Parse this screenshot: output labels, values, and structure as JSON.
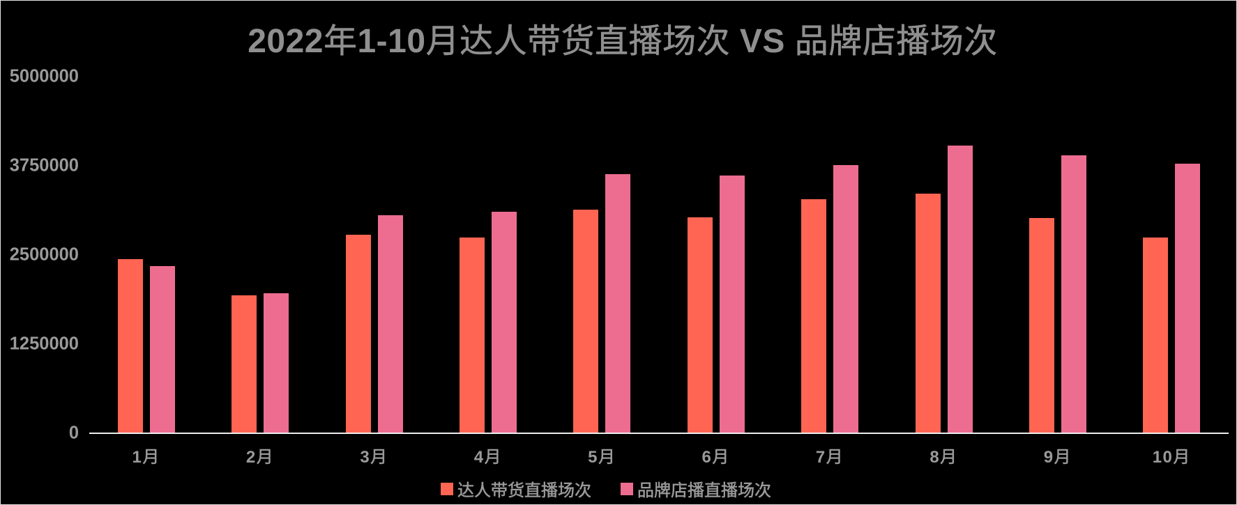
{
  "chart_data": {
    "type": "bar",
    "title": "2022年1-10月达人带货直播场次 VS 品牌店播场次",
    "categories": [
      "1月",
      "2月",
      "3月",
      "4月",
      "5月",
      "6月",
      "7月",
      "8月",
      "9月",
      "10月"
    ],
    "series": [
      {
        "name": "达人带货直播场次",
        "color": "#ff6552",
        "values": [
          2440000,
          1930000,
          2780000,
          2740000,
          3130000,
          3030000,
          3280000,
          3360000,
          3020000,
          2740000
        ]
      },
      {
        "name": "品牌店播直播场次",
        "color": "#ed6d91",
        "values": [
          2340000,
          1960000,
          3060000,
          3110000,
          3630000,
          3610000,
          3760000,
          4030000,
          3900000,
          3780000
        ]
      }
    ],
    "xlabel": "",
    "ylabel": "",
    "ylim": [
      0,
      5000000
    ],
    "yticks": [
      0,
      1250000,
      2500000,
      3750000,
      5000000
    ],
    "grid": false,
    "legend_position": "bottom",
    "background_color": "#000000",
    "text_color": "#9a9a9a",
    "title_color": "#8f8f8f",
    "axis_line_color": "#ededed"
  }
}
